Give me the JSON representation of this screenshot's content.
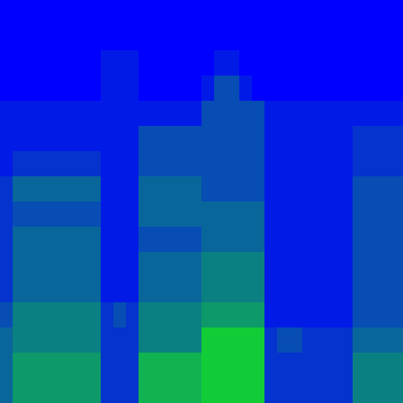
{
  "chart_data": {
    "type": "heatmap",
    "tick_labels": false,
    "zlim": [
      0,
      9
    ],
    "cells": [
      [
        0,
        0,
        0,
        0,
        0,
        0,
        0,
        0,
        0,
        0,
        0,
        0,
        0,
        0,
        0,
        0,
        0,
        0,
        0,
        0,
        0,
        0,
        0,
        0,
        0,
        0,
        0,
        0,
        0,
        0,
        0,
        0
      ],
      [
        0,
        0,
        0,
        0,
        0,
        0,
        0,
        0,
        0,
        0,
        0,
        0,
        0,
        0,
        0,
        0,
        0,
        0,
        0,
        0,
        0,
        0,
        0,
        0,
        0,
        0,
        0,
        0,
        0,
        0,
        0,
        0
      ],
      [
        0,
        0,
        0,
        0,
        0,
        0,
        0,
        0,
        1,
        1,
        1,
        0,
        0,
        0,
        0,
        0,
        0,
        1,
        1,
        0,
        0,
        0,
        0,
        0,
        0,
        0,
        0,
        0,
        0,
        0,
        0,
        0
      ],
      [
        0,
        0,
        0,
        0,
        0,
        0,
        0,
        0,
        1,
        1,
        1,
        0,
        0,
        0,
        0,
        0,
        1,
        3,
        3,
        1,
        0,
        0,
        0,
        0,
        0,
        0,
        0,
        0,
        0,
        0,
        0,
        0
      ],
      [
        1,
        1,
        1,
        1,
        1,
        1,
        1,
        1,
        1,
        1,
        1,
        1,
        1,
        1,
        1,
        1,
        3,
        3,
        3,
        3,
        3,
        1,
        1,
        1,
        1,
        1,
        1,
        1,
        1,
        1,
        1,
        1
      ],
      [
        1,
        1,
        1,
        1,
        1,
        1,
        1,
        1,
        1,
        1,
        1,
        3,
        3,
        3,
        3,
        3,
        3,
        3,
        3,
        3,
        3,
        1,
        1,
        1,
        1,
        1,
        1,
        1,
        2,
        2,
        2,
        2
      ],
      [
        1,
        2,
        2,
        2,
        2,
        2,
        2,
        2,
        1,
        1,
        1,
        3,
        3,
        3,
        3,
        3,
        3,
        3,
        3,
        3,
        3,
        1,
        1,
        1,
        1,
        1,
        1,
        1,
        2,
        2,
        2,
        2
      ],
      [
        2,
        4,
        4,
        4,
        4,
        4,
        4,
        4,
        1,
        1,
        1,
        4,
        4,
        4,
        4,
        4,
        3,
        3,
        3,
        3,
        3,
        1,
        1,
        1,
        1,
        1,
        1,
        1,
        3,
        3,
        3,
        3
      ],
      [
        2,
        3,
        3,
        3,
        3,
        3,
        3,
        3,
        1,
        1,
        1,
        4,
        4,
        4,
        4,
        4,
        4,
        4,
        4,
        4,
        4,
        1,
        1,
        1,
        1,
        1,
        1,
        1,
        3,
        3,
        3,
        3
      ],
      [
        2,
        4,
        4,
        4,
        4,
        4,
        4,
        4,
        1,
        1,
        1,
        3,
        3,
        3,
        3,
        3,
        4,
        4,
        4,
        4,
        4,
        1,
        1,
        1,
        1,
        1,
        1,
        1,
        3,
        3,
        3,
        3
      ],
      [
        2,
        4,
        4,
        4,
        4,
        4,
        4,
        4,
        1,
        1,
        1,
        4,
        4,
        4,
        4,
        4,
        5,
        5,
        5,
        5,
        5,
        1,
        1,
        1,
        1,
        1,
        1,
        1,
        3,
        3,
        3,
        3
      ],
      [
        2,
        4,
        4,
        4,
        4,
        4,
        4,
        4,
        1,
        1,
        1,
        4,
        4,
        4,
        4,
        4,
        5,
        5,
        5,
        5,
        5,
        1,
        1,
        1,
        1,
        1,
        1,
        1,
        3,
        3,
        3,
        3
      ],
      [
        3,
        5,
        5,
        5,
        5,
        5,
        5,
        5,
        2,
        3,
        2,
        5,
        5,
        5,
        5,
        5,
        6,
        6,
        6,
        6,
        6,
        1,
        1,
        1,
        1,
        1,
        1,
        1,
        3,
        3,
        3,
        3
      ],
      [
        4,
        5,
        5,
        5,
        5,
        5,
        5,
        5,
        2,
        2,
        2,
        5,
        5,
        5,
        5,
        5,
        8,
        8,
        8,
        8,
        8,
        2,
        3,
        3,
        2,
        2,
        2,
        2,
        4,
        4,
        4,
        4
      ],
      [
        4,
        6,
        6,
        6,
        6,
        6,
        6,
        6,
        2,
        2,
        2,
        7,
        7,
        7,
        7,
        7,
        8,
        8,
        8,
        8,
        8,
        2,
        2,
        2,
        2,
        2,
        2,
        2,
        5,
        5,
        5,
        5
      ],
      [
        4,
        6,
        6,
        6,
        6,
        6,
        6,
        6,
        2,
        2,
        2,
        7,
        7,
        7,
        7,
        7,
        8,
        8,
        8,
        8,
        8,
        2,
        2,
        2,
        2,
        2,
        2,
        2,
        5,
        5,
        5,
        5
      ]
    ]
  }
}
